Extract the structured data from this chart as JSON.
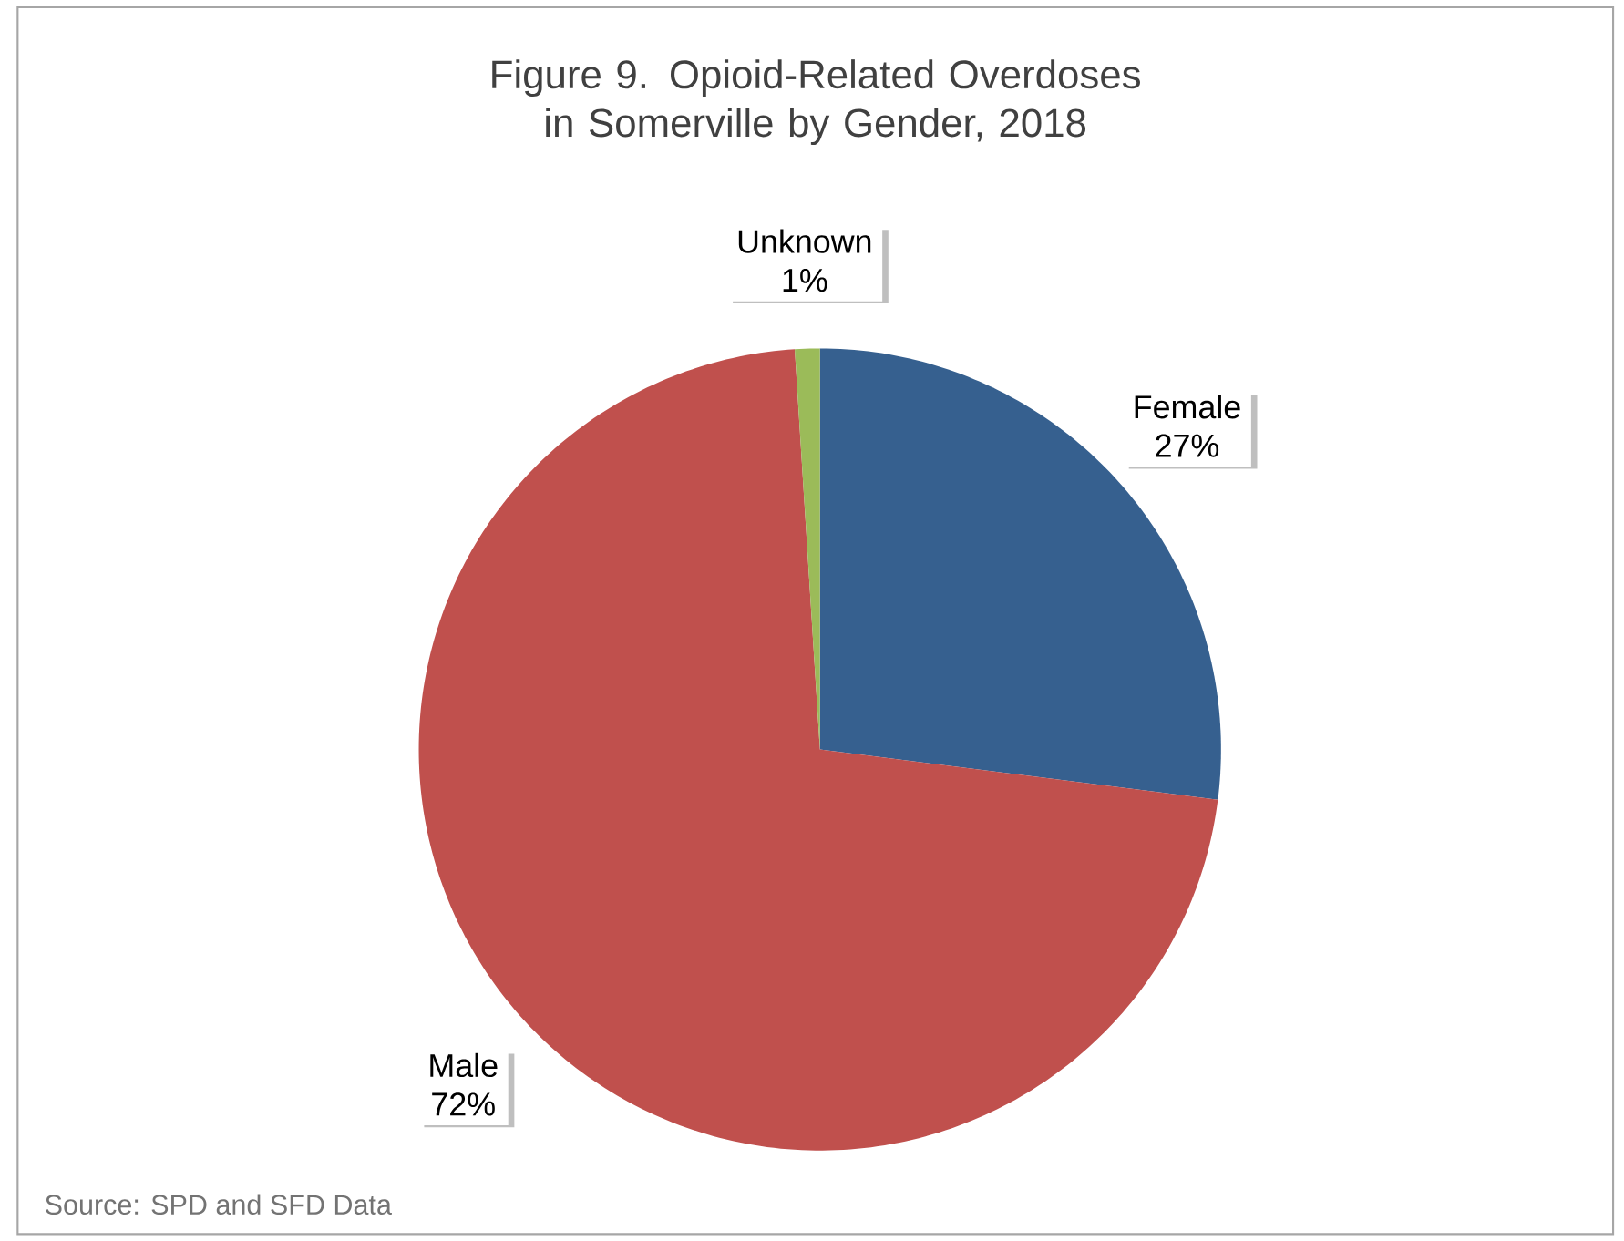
{
  "chart_data": {
    "type": "pie",
    "title": "Figure 9. Opioid-Related Overdoses in Somerville by Gender, 2018",
    "categories": [
      "Female",
      "Male",
      "Unknown"
    ],
    "values": [
      27,
      72,
      1
    ],
    "value_labels": [
      "27%",
      "72%",
      "1%"
    ],
    "colors": [
      "#36608f",
      "#c0504d",
      "#9bbb59"
    ],
    "annotations": [
      "Source: SPD and SFD Data"
    ]
  }
}
